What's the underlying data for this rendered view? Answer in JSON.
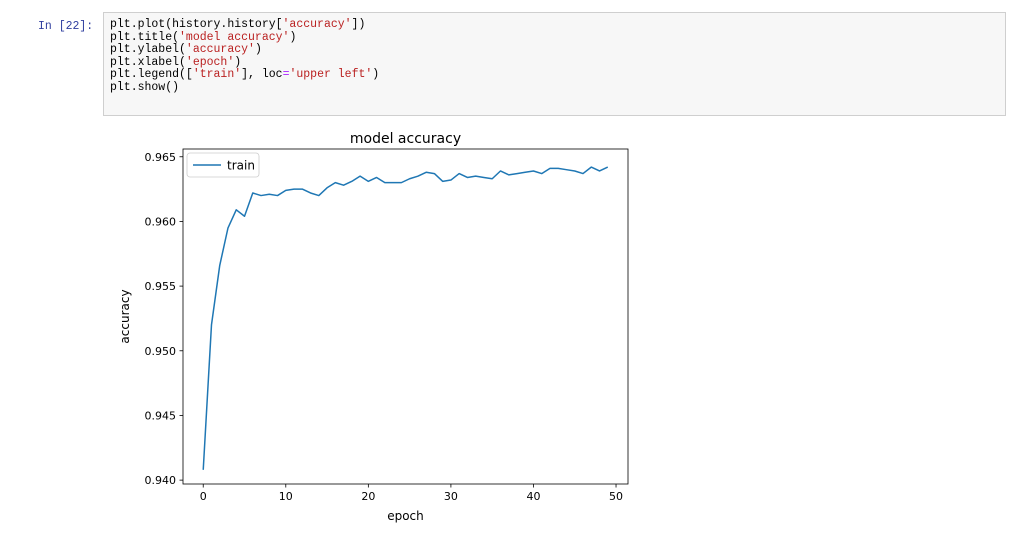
{
  "cell": {
    "prompt": "In [22]:",
    "code_lines": [
      [
        {
          "t": "plt.plot(history.history["
        },
        {
          "t": "'accuracy'",
          "c": "str"
        },
        {
          "t": "])"
        }
      ],
      [
        {
          "t": "plt.title("
        },
        {
          "t": "'model accuracy'",
          "c": "str"
        },
        {
          "t": ")"
        }
      ],
      [
        {
          "t": "plt.ylabel("
        },
        {
          "t": "'accuracy'",
          "c": "str"
        },
        {
          "t": ")"
        }
      ],
      [
        {
          "t": "plt.xlabel("
        },
        {
          "t": "'epoch'",
          "c": "str"
        },
        {
          "t": ")"
        }
      ],
      [
        {
          "t": "plt.legend(["
        },
        {
          "t": "'train'",
          "c": "str"
        },
        {
          "t": "], loc"
        },
        {
          "t": "=",
          "c": "op"
        },
        {
          "t": "'upper left'",
          "c": "str"
        },
        {
          "t": ")"
        }
      ],
      [
        {
          "t": "plt.show()"
        }
      ]
    ]
  },
  "chart_data": {
    "type": "line",
    "title": "model accuracy",
    "xlabel": "epoch",
    "ylabel": "accuracy",
    "xlim": [
      -2.45,
      51.45
    ],
    "ylim": [
      0.9397,
      0.9656
    ],
    "xticks": [
      0,
      10,
      20,
      30,
      40,
      50
    ],
    "yticks": [
      0.94,
      0.945,
      0.95,
      0.955,
      0.96,
      0.965
    ],
    "ytick_labels": [
      "0.940",
      "0.945",
      "0.950",
      "0.955",
      "0.960",
      "0.965"
    ],
    "legend_position": "upper-left",
    "line_color": "#1f77b4",
    "series": [
      {
        "name": "train",
        "x": [
          0,
          1,
          2,
          3,
          4,
          5,
          6,
          7,
          8,
          9,
          10,
          11,
          12,
          13,
          14,
          15,
          16,
          17,
          18,
          19,
          20,
          21,
          22,
          23,
          24,
          25,
          26,
          27,
          28,
          29,
          30,
          31,
          32,
          33,
          34,
          35,
          36,
          37,
          38,
          39,
          40,
          41,
          42,
          43,
          44,
          45,
          46,
          47,
          48,
          49
        ],
        "values": [
          0.9408,
          0.952,
          0.9566,
          0.9595,
          0.9609,
          0.9604,
          0.9622,
          0.962,
          0.9621,
          0.962,
          0.9624,
          0.9625,
          0.9625,
          0.9622,
          0.962,
          0.9626,
          0.963,
          0.9628,
          0.9631,
          0.9635,
          0.9631,
          0.9634,
          0.963,
          0.963,
          0.963,
          0.9633,
          0.9635,
          0.9638,
          0.9637,
          0.9631,
          0.9632,
          0.9637,
          0.9634,
          0.9635,
          0.9634,
          0.9633,
          0.9639,
          0.9636,
          0.9637,
          0.9638,
          0.9639,
          0.9637,
          0.9641,
          0.9641,
          0.964,
          0.9639,
          0.9637,
          0.9642,
          0.9639,
          0.9642
        ]
      }
    ]
  }
}
